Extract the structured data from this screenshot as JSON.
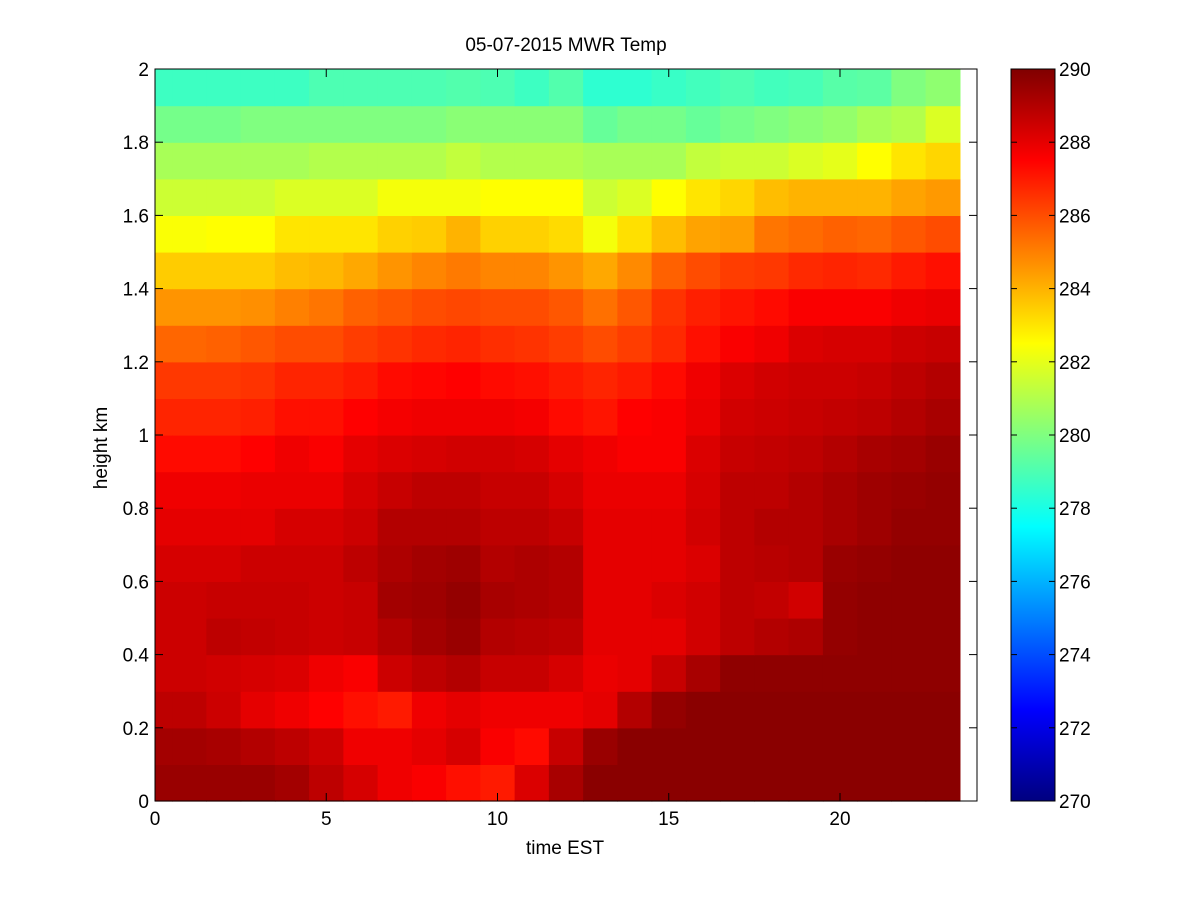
{
  "chart_data": {
    "type": "heatmap",
    "title": "05-07-2015 MWR Temp",
    "xlabel": "time EST",
    "ylabel": "height km",
    "xlim": [
      0,
      24
    ],
    "ylim": [
      0,
      2
    ],
    "x_ticks": [
      "0",
      "5",
      "10",
      "15",
      "20"
    ],
    "x_tick_values": [
      0,
      5,
      10,
      15,
      20
    ],
    "y_ticks": [
      "0",
      "0.2",
      "0.4",
      "0.6",
      "0.8",
      "1",
      "1.2",
      "1.4",
      "1.6",
      "1.8",
      "2"
    ],
    "y_tick_values": [
      0,
      0.2,
      0.4,
      0.6,
      0.8,
      1.0,
      1.2,
      1.4,
      1.6,
      1.8,
      2.0
    ],
    "colorbar": {
      "colormap": "jet",
      "clim": [
        270,
        290
      ],
      "ticks": [
        "270",
        "272",
        "274",
        "276",
        "278",
        "280",
        "282",
        "284",
        "286",
        "288",
        "290"
      ],
      "tick_values": [
        270,
        272,
        274,
        276,
        278,
        280,
        282,
        284,
        286,
        288,
        290
      ]
    },
    "x": [
      0.5,
      1.5,
      2.5,
      3.5,
      4.5,
      5.5,
      6.5,
      7.5,
      8.5,
      9.5,
      10.5,
      11.5,
      12.5,
      13.5,
      14.5,
      15.5,
      16.5,
      17.5,
      18.5,
      19.5,
      20.5,
      21.5,
      22.5,
      23.5
    ],
    "y": [
      0.0,
      0.1,
      0.2,
      0.3,
      0.4,
      0.5,
      0.6,
      0.7,
      0.8,
      0.9,
      1.0,
      1.1,
      1.2,
      1.3,
      1.4,
      1.5,
      1.6,
      1.7,
      1.8,
      1.9,
      2.0
    ],
    "z": [
      [
        289.5,
        289.5,
        289.5,
        289.3,
        288.8,
        288.3,
        287.8,
        287.6,
        287.2,
        287.0,
        288.2,
        289.2,
        289.8,
        289.8,
        289.8,
        289.8,
        289.8,
        289.8,
        289.8,
        289.8,
        289.8,
        289.8,
        289.8,
        289.8
      ],
      [
        289.3,
        289.2,
        289.0,
        288.8,
        288.5,
        287.8,
        287.8,
        288.0,
        288.3,
        287.6,
        287.3,
        288.6,
        289.5,
        289.8,
        289.8,
        289.8,
        289.8,
        289.8,
        289.8,
        289.8,
        289.8,
        289.8,
        289.8,
        289.8
      ],
      [
        288.8,
        288.5,
        288.0,
        287.8,
        287.5,
        287.2,
        287.0,
        287.8,
        288.0,
        287.8,
        287.8,
        287.8,
        288.0,
        289.0,
        289.6,
        289.8,
        289.8,
        289.8,
        289.8,
        289.8,
        289.8,
        289.8,
        289.8,
        289.8
      ],
      [
        288.5,
        288.4,
        288.3,
        288.2,
        287.8,
        287.6,
        288.5,
        288.8,
        289.0,
        288.6,
        288.6,
        288.3,
        287.9,
        288.0,
        288.6,
        289.2,
        289.7,
        289.7,
        289.7,
        289.7,
        289.7,
        289.7,
        289.7,
        289.7
      ],
      [
        288.5,
        288.8,
        288.7,
        288.6,
        288.5,
        288.6,
        289.0,
        289.3,
        289.5,
        289.0,
        288.9,
        288.8,
        288.0,
        288.0,
        288.0,
        288.4,
        288.8,
        289.0,
        289.1,
        289.6,
        289.7,
        289.7,
        289.7,
        289.7
      ],
      [
        288.5,
        288.6,
        288.6,
        288.6,
        288.5,
        288.6,
        289.3,
        289.4,
        289.6,
        289.2,
        289.1,
        289.0,
        288.0,
        288.0,
        288.2,
        288.4,
        288.8,
        288.7,
        288.4,
        289.6,
        289.7,
        289.7,
        289.7,
        289.7
      ],
      [
        288.3,
        288.3,
        288.5,
        288.5,
        288.5,
        288.8,
        289.1,
        289.3,
        289.4,
        289.0,
        289.1,
        289.0,
        288.0,
        288.0,
        288.0,
        288.2,
        288.8,
        288.9,
        289.0,
        289.5,
        289.6,
        289.7,
        289.7,
        289.7
      ],
      [
        288.0,
        288.0,
        288.0,
        288.3,
        288.3,
        288.5,
        289.0,
        289.0,
        289.0,
        288.8,
        288.8,
        288.6,
        288.0,
        288.0,
        288.0,
        288.4,
        288.8,
        289.0,
        289.0,
        289.2,
        289.4,
        289.6,
        289.6,
        289.6
      ],
      [
        287.8,
        287.8,
        287.9,
        287.9,
        287.9,
        288.3,
        288.6,
        288.8,
        288.8,
        288.6,
        288.6,
        288.3,
        287.9,
        287.9,
        287.9,
        288.3,
        288.8,
        288.8,
        289.0,
        289.2,
        289.4,
        289.5,
        289.6,
        289.6
      ],
      [
        287.3,
        287.3,
        287.5,
        287.8,
        287.6,
        288.0,
        288.2,
        288.3,
        288.4,
        288.4,
        288.3,
        288.0,
        287.8,
        287.6,
        287.6,
        288.2,
        288.6,
        288.7,
        288.8,
        289.0,
        289.2,
        289.3,
        289.5,
        289.5
      ],
      [
        286.8,
        286.8,
        286.9,
        287.2,
        287.2,
        287.5,
        287.7,
        287.8,
        287.8,
        287.8,
        287.7,
        287.3,
        287.1,
        287.5,
        287.6,
        287.9,
        288.4,
        288.5,
        288.6,
        288.7,
        288.8,
        289.0,
        289.2,
        289.4
      ],
      [
        286.4,
        286.4,
        286.5,
        286.8,
        286.8,
        287.0,
        287.3,
        287.4,
        287.5,
        287.3,
        287.2,
        287.0,
        286.8,
        287.0,
        287.3,
        287.8,
        288.2,
        288.4,
        288.5,
        288.5,
        288.6,
        288.8,
        289.0,
        289.1
      ],
      [
        285.5,
        285.6,
        285.8,
        286.0,
        286.0,
        286.3,
        286.5,
        286.7,
        286.8,
        286.6,
        286.5,
        286.3,
        286.0,
        286.3,
        286.7,
        287.2,
        287.6,
        287.8,
        288.2,
        288.3,
        288.3,
        288.5,
        288.6,
        288.6
      ],
      [
        284.6,
        284.6,
        284.7,
        285.0,
        285.2,
        285.6,
        285.8,
        286.0,
        286.1,
        286.0,
        286.0,
        285.8,
        285.3,
        285.8,
        286.5,
        286.9,
        287.1,
        287.3,
        287.6,
        287.6,
        287.6,
        287.8,
        287.9,
        287.9
      ],
      [
        283.5,
        283.5,
        283.5,
        283.8,
        283.9,
        284.2,
        284.6,
        284.9,
        285.1,
        284.9,
        284.9,
        284.6,
        284.2,
        284.8,
        285.6,
        286.0,
        286.3,
        286.4,
        286.7,
        286.8,
        286.7,
        287.0,
        287.2,
        287.2
      ],
      [
        282.4,
        282.5,
        282.5,
        283.0,
        283.0,
        283.0,
        283.4,
        283.5,
        284.0,
        283.4,
        283.4,
        283.2,
        282.3,
        283.1,
        283.8,
        284.3,
        284.4,
        285.2,
        285.4,
        285.6,
        285.5,
        285.8,
        286.0,
        286.0
      ],
      [
        281.5,
        281.5,
        281.5,
        281.8,
        281.8,
        281.8,
        282.3,
        282.3,
        282.3,
        282.5,
        282.5,
        282.5,
        281.5,
        281.8,
        282.5,
        283.0,
        283.3,
        283.8,
        284.0,
        284.0,
        284.0,
        284.3,
        284.5,
        284.5
      ],
      [
        280.8,
        280.8,
        280.8,
        280.8,
        281.0,
        281.0,
        281.0,
        281.0,
        281.3,
        281.0,
        281.0,
        281.0,
        280.8,
        280.8,
        280.8,
        281.3,
        281.5,
        281.5,
        281.8,
        282.0,
        282.5,
        283.0,
        283.3,
        283.3
      ],
      [
        279.8,
        279.8,
        280.0,
        280.0,
        280.0,
        280.0,
        280.0,
        280.0,
        280.2,
        280.2,
        280.2,
        280.2,
        279.5,
        279.8,
        279.8,
        279.5,
        279.8,
        280.0,
        280.2,
        280.4,
        280.8,
        281.0,
        281.8,
        282.0
      ],
      [
        278.7,
        278.7,
        278.7,
        278.7,
        279.0,
        279.0,
        279.0,
        279.0,
        279.1,
        279.0,
        278.7,
        279.1,
        278.4,
        278.4,
        278.6,
        278.8,
        279.0,
        278.8,
        278.9,
        279.2,
        279.3,
        280.0,
        280.3,
        280.6
      ]
    ]
  }
}
